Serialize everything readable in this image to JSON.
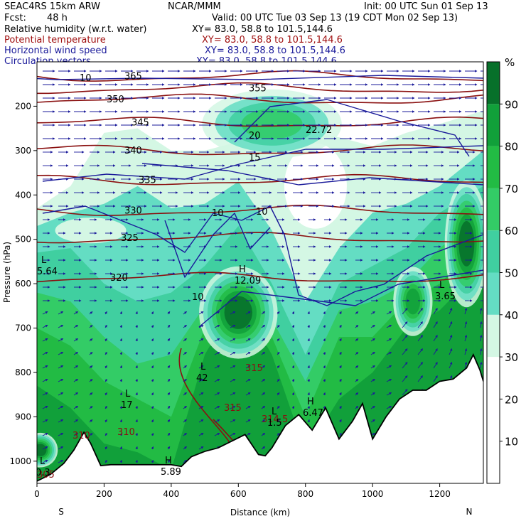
{
  "header": {
    "model": "SEAC4RS 15km ARW",
    "center": "NCAR/MMM",
    "init": "Init: 00 UTC Sun 01 Sep 13",
    "fcst_label": "Fcst:",
    "fcst_value": "48 h",
    "valid": "Valid: 00 UTC Tue 03 Sep 13 (19 CDT Mon 02 Sep 13)"
  },
  "fields": [
    {
      "name": "Relative humidity (w.r.t. water)",
      "xy": "XY=  83.0, 58.8 to 101.5,144.6",
      "color": "#000000"
    },
    {
      "name": "Potential temperature",
      "xy": "XY=  83.0, 58.8 to 101.5,144.6",
      "color": "#a01010"
    },
    {
      "name": "Horizontal wind speed",
      "xy": "XY=  83.0, 58.8 to 101.5,144.6",
      "color": "#1a1a9a"
    },
    {
      "name": "Circulation vectors",
      "xy": "XY=  83.0, 58.8 to 101.5,144.6",
      "color": "#1a1a9a"
    }
  ],
  "chart_data": {
    "type": "heatmap",
    "xlabel": "Distance (km)",
    "ylabel": "Pressure (hPa)",
    "xlim": [
      0,
      1330
    ],
    "ylim": [
      1050,
      100
    ],
    "x_ticks": [
      0,
      200,
      400,
      600,
      800,
      1000,
      1200
    ],
    "y_ticks": [
      200,
      300,
      400,
      500,
      600,
      700,
      800,
      900,
      1000
    ],
    "x_end_labels": {
      "left": "S",
      "right": "N"
    },
    "colorbar": {
      "unit": "%",
      "ticks": [
        10,
        20,
        30,
        40,
        50,
        60,
        70,
        80,
        90
      ],
      "levels": [
        30,
        40,
        50,
        60,
        70,
        80,
        90
      ],
      "colors": [
        "#d4f7e4",
        "#64ddc3",
        "#40cfa0",
        "#33cc66",
        "#22bb44",
        "#11a03a",
        "#07702a"
      ]
    },
    "theta_contours": [
      {
        "label": "365",
        "p": 133
      },
      {
        "label": "355",
        "p": 160
      },
      {
        "label": "350",
        "p": 185
      },
      {
        "label": "345",
        "p": 237
      },
      {
        "label": "340",
        "p": 300
      },
      {
        "label": "335",
        "p": 367
      },
      {
        "label": "330",
        "p": 436
      },
      {
        "label": "325",
        "p": 497
      },
      {
        "label": "320",
        "p": 587
      }
    ],
    "theta_low_labels": [
      "315",
      "315",
      "314.5",
      "310",
      "310",
      "305"
    ],
    "wind_labels": [
      "10",
      "15",
      "20",
      "22.72",
      "10",
      "10",
      "10"
    ],
    "pressure_centers": [
      {
        "type": "L",
        "value": "5.64"
      },
      {
        "type": "H",
        "value": "12.09"
      },
      {
        "type": "L",
        "value": "3.65"
      },
      {
        "type": "L",
        "value": "42"
      },
      {
        "type": "L",
        "value": "17"
      },
      {
        "type": "L",
        "value": "0.3"
      },
      {
        "type": "H",
        "value": "5.89"
      },
      {
        "type": "H",
        "value": "6.47"
      },
      {
        "type": "L",
        "value": "1.5"
      }
    ],
    "terrain": {
      "x": [
        0,
        40,
        80,
        110,
        140,
        160,
        190,
        220,
        260,
        300,
        350,
        400,
        430,
        460,
        500,
        540,
        580,
        620,
        660,
        680,
        700,
        740,
        780,
        820,
        860,
        900,
        940,
        970,
        1000,
        1040,
        1080,
        1120,
        1160,
        1200,
        1240,
        1280,
        1300,
        1320,
        1330
      ],
      "p": [
        1045,
        1030,
        1005,
        975,
        935,
        960,
        1010,
        1008,
        1008,
        1008,
        1008,
        1008,
        1012,
        990,
        978,
        970,
        955,
        940,
        985,
        988,
        970,
        920,
        895,
        930,
        880,
        950,
        910,
        870,
        950,
        900,
        860,
        840,
        840,
        820,
        815,
        790,
        760,
        795,
        820
      ]
    },
    "humid_blobs": [
      {
        "x": 600,
        "p": 665,
        "rx": 90,
        "rp": 80,
        "level": 90
      },
      {
        "x": 1280,
        "p": 510,
        "rx": 50,
        "rp": 110,
        "level": 90
      },
      {
        "x": 1120,
        "p": 640,
        "rx": 45,
        "rp": 60,
        "level": 80
      },
      {
        "x": 10,
        "p": 975,
        "rx": 40,
        "rp": 30,
        "level": 90
      },
      {
        "x": 700,
        "p": 240,
        "rx": 160,
        "rp": 60,
        "level": 60
      }
    ]
  }
}
